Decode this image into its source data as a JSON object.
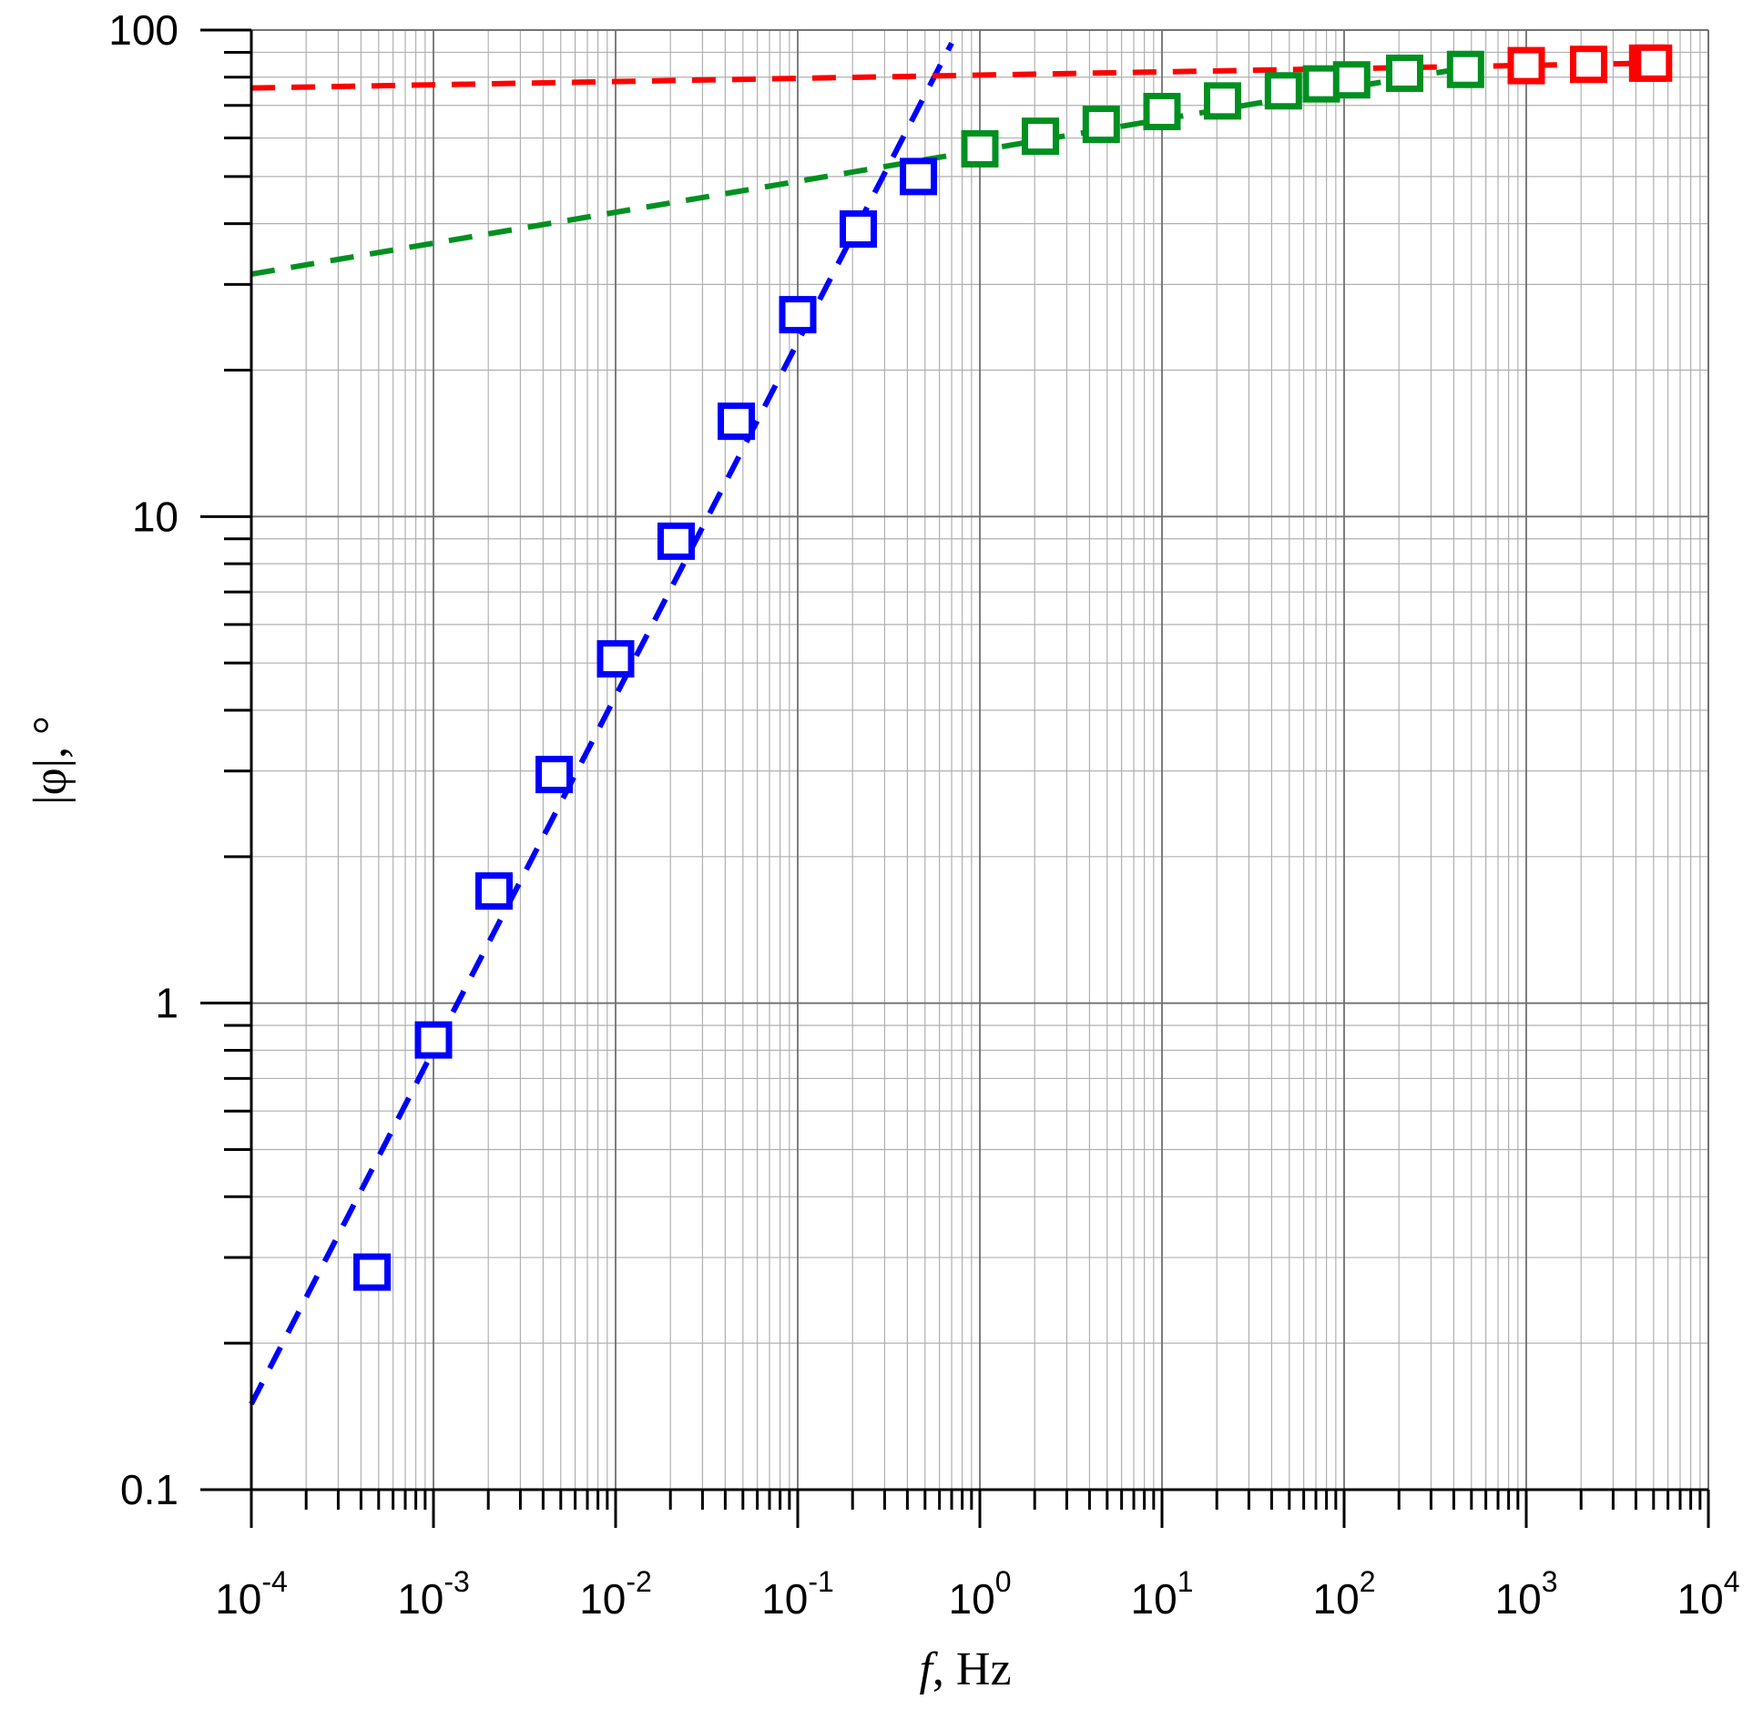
{
  "chart_data": {
    "type": "scatter",
    "title": "",
    "xlabel_italic": "f",
    "xlabel_rest": ", Hz",
    "ylabel": "|φ|, °",
    "x_scale": "log",
    "y_scale": "log",
    "xlim": [
      0.0001,
      10000
    ],
    "ylim": [
      0.1,
      100
    ],
    "grid": true,
    "x_ticks": [
      {
        "value": 0.0001,
        "base": "10",
        "exp": "-4"
      },
      {
        "value": 0.001,
        "base": "10",
        "exp": "-3"
      },
      {
        "value": 0.01,
        "base": "10",
        "exp": "-2"
      },
      {
        "value": 0.1,
        "base": "10",
        "exp": "-1"
      },
      {
        "value": 1,
        "base": "10",
        "exp": "0"
      },
      {
        "value": 10,
        "base": "10",
        "exp": "1"
      },
      {
        "value": 100,
        "base": "10",
        "exp": "2"
      },
      {
        "value": 1000,
        "base": "10",
        "exp": "3"
      },
      {
        "value": 10000,
        "base": "10",
        "exp": "4"
      }
    ],
    "y_ticks": [
      {
        "value": 0.1,
        "label": "0.1"
      },
      {
        "value": 1,
        "label": "1"
      },
      {
        "value": 10,
        "label": "10"
      },
      {
        "value": 100,
        "label": "100"
      }
    ],
    "series": [
      {
        "color": "#0000ff",
        "marker": "square",
        "x": [
          0.00046,
          0.001,
          0.00215,
          0.0046,
          0.01,
          0.0215,
          0.046,
          0.1,
          0.215,
          0.46
        ],
        "y": [
          0.28,
          0.84,
          1.7,
          2.95,
          5.1,
          8.9,
          15.7,
          26,
          39,
          50
        ]
      },
      {
        "color": "#009020",
        "marker": "square",
        "x": [
          1,
          2.15,
          4.64,
          10,
          21.5,
          46.4,
          75,
          110,
          215,
          464
        ],
        "y": [
          57,
          60.5,
          64,
          68,
          71.5,
          75,
          77.5,
          79,
          81.5,
          83
        ]
      },
      {
        "color": "#ff0000",
        "marker": "square",
        "x": [
          1000,
          2200,
          4640,
          5000
        ],
        "y": [
          84.5,
          85,
          85.5,
          85.5
        ]
      }
    ],
    "fit_lines": [
      {
        "color": "#0000ff",
        "style": "dashed",
        "x": [
          0.0001,
          0.7
        ],
        "y": [
          0.15,
          94
        ]
      },
      {
        "color": "#009020",
        "style": "dashed",
        "x": [
          0.0001,
          500
        ],
        "y": [
          31.5,
          84
        ]
      },
      {
        "color": "#ff0000",
        "style": "dashed",
        "x": [
          0.0001,
          5000
        ],
        "y": [
          76,
          85.5
        ]
      }
    ]
  }
}
